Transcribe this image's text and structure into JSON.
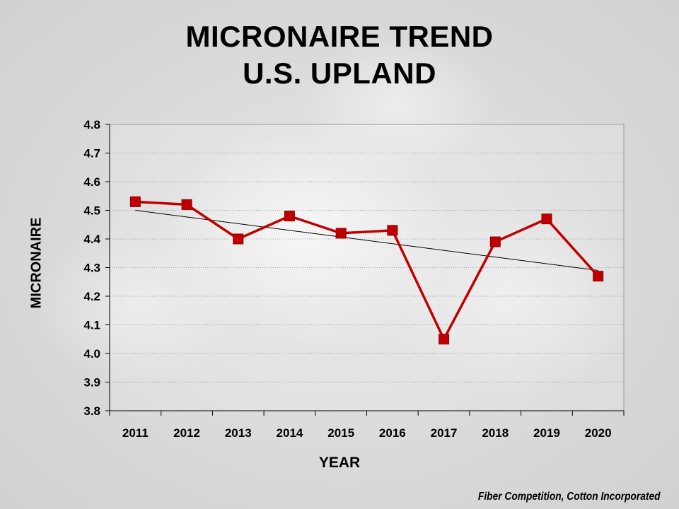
{
  "chart_data": {
    "type": "line",
    "title": [
      "MICRONAIRE TREND",
      "U.S. UPLAND"
    ],
    "xlabel": "YEAR",
    "ylabel": "MICRONAIRE",
    "categories": [
      "2011",
      "2012",
      "2013",
      "2014",
      "2015",
      "2016",
      "2017",
      "2018",
      "2019",
      "2020"
    ],
    "series": [
      {
        "name": "Micronaire",
        "color": "#c00000",
        "marker": "square",
        "values": [
          4.53,
          4.52,
          4.4,
          4.48,
          4.42,
          4.43,
          4.05,
          4.39,
          4.47,
          4.27
        ]
      }
    ],
    "trendline": {
      "type": "linear",
      "color": "#000000",
      "start": 4.5,
      "end": 4.29
    },
    "ylim": [
      3.8,
      4.8
    ],
    "yticks": [
      "3.8",
      "3.9",
      "4.0",
      "4.1",
      "4.2",
      "4.3",
      "4.4",
      "4.5",
      "4.6",
      "4.7",
      "4.8"
    ],
    "grid": true
  },
  "footer": {
    "source": "Fiber Competition, Cotton Incorporated"
  }
}
